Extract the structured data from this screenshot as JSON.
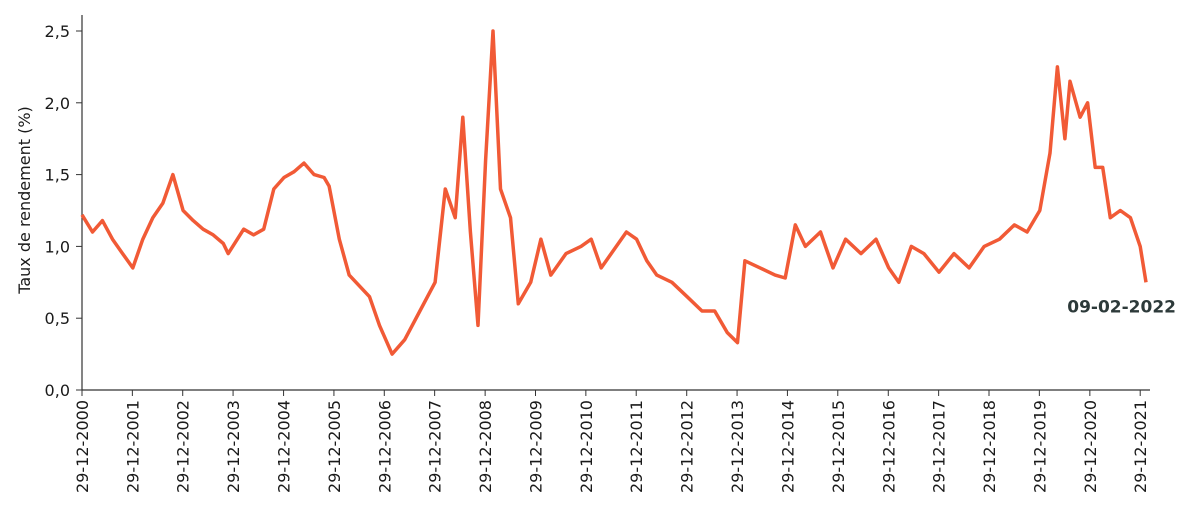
{
  "chart_data": {
    "type": "line",
    "y_label": "Taux de rendement (%)",
    "annotation": "09-02-2022",
    "x": [
      "2000-12-29",
      "2001-03-15",
      "2001-05-26",
      "2001-08-07",
      "2001-10-19",
      "2002-01-01",
      "2002-03-15",
      "2002-05-26",
      "2002-08-07",
      "2002-10-19",
      "2003-01-01",
      "2003-03-15",
      "2003-05-26",
      "2003-08-07",
      "2003-10-19",
      "2003-11-24",
      "2004-03-15",
      "2004-05-26",
      "2004-08-07",
      "2004-10-19",
      "2005-01-01",
      "2005-03-15",
      "2005-05-26",
      "2005-08-07",
      "2005-10-19",
      "2005-11-24",
      "2006-02-06",
      "2006-04-19",
      "2006-09-13",
      "2006-11-24",
      "2007-02-24",
      "2007-05-26",
      "2007-09-13",
      "2008-01-01",
      "2008-03-15",
      "2008-05-26",
      "2008-07-20",
      "2008-09-13",
      "2008-11-07",
      "2009-01-01",
      "2009-02-24",
      "2009-04-19",
      "2009-07-01",
      "2009-08-26",
      "2009-11-24",
      "2010-02-06",
      "2010-04-19",
      "2010-08-07",
      "2010-11-24",
      "2011-02-06",
      "2011-04-19",
      "2011-07-01",
      "2011-10-19",
      "2012-01-01",
      "2012-03-15",
      "2012-05-26",
      "2012-09-13",
      "2013-01-01",
      "2013-04-19",
      "2013-07-20",
      "2013-10-19",
      "2014-01-01",
      "2014-02-24",
      "2014-06-14",
      "2014-10-01",
      "2014-12-13",
      "2015-02-24",
      "2015-05-08",
      "2015-08-26",
      "2015-11-24",
      "2016-02-24",
      "2016-06-14",
      "2016-10-01",
      "2017-01-01",
      "2017-03-15",
      "2017-06-14",
      "2017-09-13",
      "2018-01-01",
      "2018-04-19",
      "2018-08-07",
      "2018-11-24",
      "2019-03-15",
      "2019-07-01",
      "2019-10-01",
      "2020-01-01",
      "2020-03-15",
      "2020-05-08",
      "2020-07-01",
      "2020-08-07",
      "2020-10-19",
      "2020-12-13",
      "2021-02-06",
      "2021-04-01",
      "2021-05-26",
      "2021-08-07",
      "2021-10-19",
      "2021-12-29",
      "2022-02-09"
    ],
    "series": [
      {
        "name": "Taux de rendement",
        "color": "#f15a36",
        "values": [
          1.22,
          1.1,
          1.18,
          1.05,
          0.95,
          0.85,
          1.05,
          1.2,
          1.3,
          1.5,
          1.25,
          1.18,
          1.12,
          1.08,
          1.02,
          0.95,
          1.12,
          1.08,
          1.12,
          1.4,
          1.48,
          1.52,
          1.58,
          1.5,
          1.48,
          1.42,
          1.05,
          0.8,
          0.65,
          0.45,
          0.25,
          0.35,
          0.55,
          0.75,
          1.4,
          1.2,
          1.9,
          1.1,
          0.45,
          1.6,
          2.5,
          1.4,
          1.2,
          0.6,
          0.75,
          1.05,
          0.8,
          0.95,
          1.0,
          1.05,
          0.85,
          0.95,
          1.1,
          1.05,
          0.9,
          0.8,
          0.75,
          0.65,
          0.55,
          0.55,
          0.4,
          0.33,
          0.9,
          0.85,
          0.8,
          0.78,
          1.15,
          1.0,
          1.1,
          0.85,
          1.05,
          0.95,
          1.05,
          0.85,
          0.75,
          1.0,
          0.95,
          0.82,
          0.95,
          0.85,
          1.0,
          1.05,
          1.15,
          1.1,
          1.25,
          1.65,
          2.25,
          1.75,
          2.15,
          1.9,
          2.0,
          1.55,
          1.55,
          1.2,
          1.25,
          1.2,
          1.0,
          0.75
        ]
      }
    ],
    "xlim": [
      "2000-12-29",
      "2022-02-09"
    ],
    "xticks": [
      {
        "value": "2000-12-29",
        "label": "29-12-2000"
      },
      {
        "value": "2001-12-29",
        "label": "29-12-2001"
      },
      {
        "value": "2002-12-29",
        "label": "29-12-2002"
      },
      {
        "value": "2003-12-29",
        "label": "29-12-2003"
      },
      {
        "value": "2004-12-29",
        "label": "29-12-2004"
      },
      {
        "value": "2005-12-29",
        "label": "29-12-2005"
      },
      {
        "value": "2006-12-29",
        "label": "29-12-2006"
      },
      {
        "value": "2007-12-29",
        "label": "29-12-2007"
      },
      {
        "value": "2008-12-29",
        "label": "29-12-2008"
      },
      {
        "value": "2009-12-29",
        "label": "29-12-2009"
      },
      {
        "value": "2010-12-29",
        "label": "29-12-2010"
      },
      {
        "value": "2011-12-29",
        "label": "29-12-2011"
      },
      {
        "value": "2012-12-29",
        "label": "29-12-2012"
      },
      {
        "value": "2013-12-29",
        "label": "29-12-2013"
      },
      {
        "value": "2014-12-29",
        "label": "29-12-2014"
      },
      {
        "value": "2015-12-29",
        "label": "29-12-2015"
      },
      {
        "value": "2016-12-29",
        "label": "29-12-2016"
      },
      {
        "value": "2017-12-29",
        "label": "29-12-2017"
      },
      {
        "value": "2018-12-29",
        "label": "29-12-2018"
      },
      {
        "value": "2019-12-29",
        "label": "29-12-2019"
      },
      {
        "value": "2020-12-29",
        "label": "29-12-2020"
      },
      {
        "value": "2021-12-29",
        "label": "29-12-2021"
      }
    ],
    "ylim": [
      0,
      2.5
    ],
    "yticks": [
      {
        "value": 0,
        "label": "0,0"
      },
      {
        "value": 0.5,
        "label": "0,5"
      },
      {
        "value": 1,
        "label": "1,0"
      },
      {
        "value": 1.5,
        "label": "1,5"
      },
      {
        "value": 2,
        "label": "2,0"
      },
      {
        "value": 2.5,
        "label": "2,5"
      }
    ]
  }
}
